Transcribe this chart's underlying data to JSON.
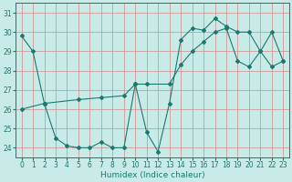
{
  "xlabel": "Humidex (Indice chaleur)",
  "bg_color": "#c8ebe8",
  "line_color": "#1a7a6e",
  "grid_color": "#d08888",
  "xlim": [
    -0.5,
    23.5
  ],
  "ylim": [
    23.5,
    31.5
  ],
  "yticks": [
    24,
    25,
    26,
    27,
    28,
    29,
    30,
    31
  ],
  "xticks": [
    0,
    1,
    2,
    3,
    4,
    5,
    6,
    7,
    8,
    9,
    10,
    11,
    12,
    13,
    14,
    15,
    16,
    17,
    18,
    19,
    20,
    21,
    22,
    23
  ],
  "series": [
    {
      "x": [
        0,
        1,
        2
      ],
      "y": [
        29.8,
        29.0,
        26.3
      ]
    },
    {
      "x": [
        2,
        3,
        4,
        5,
        6,
        7,
        8,
        9,
        10,
        11,
        12,
        13,
        14,
        15,
        16,
        17,
        18,
        19,
        20,
        21,
        22,
        23
      ],
      "y": [
        26.3,
        24.5,
        24.1,
        24.0,
        24.0,
        24.3,
        24.0,
        24.0,
        27.3,
        24.8,
        23.8,
        26.3,
        29.6,
        30.2,
        30.1,
        30.7,
        30.3,
        30.0,
        30.0,
        29.0,
        30.0,
        28.5
      ]
    },
    {
      "x": [
        0,
        2,
        5,
        7,
        9,
        10,
        11,
        13,
        14,
        15,
        16,
        17,
        18,
        19,
        20,
        21,
        22,
        23
      ],
      "y": [
        26.0,
        26.3,
        26.5,
        26.6,
        26.7,
        27.3,
        27.3,
        27.3,
        28.3,
        29.0,
        29.5,
        30.0,
        30.2,
        28.5,
        28.2,
        29.0,
        28.2,
        28.5
      ]
    }
  ]
}
